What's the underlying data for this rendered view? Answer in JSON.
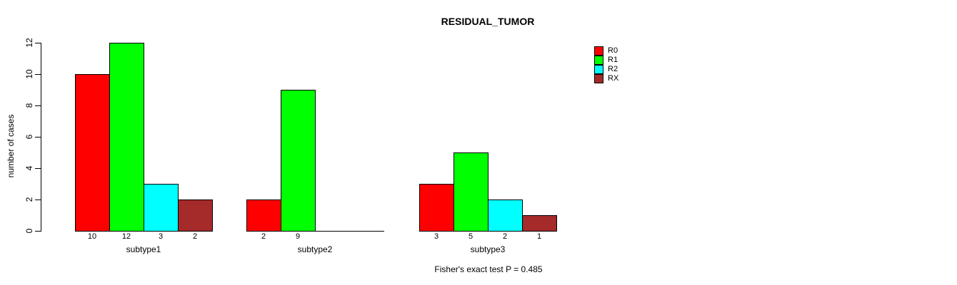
{
  "chart_data": {
    "type": "bar",
    "title": "RESIDUAL_TUMOR",
    "xlabel": "",
    "ylabel": "number of cases",
    "categories": [
      "subtype1",
      "subtype2",
      "subtype3"
    ],
    "series": [
      {
        "name": "R0",
        "color": "#FF0000",
        "values": [
          10,
          2,
          3
        ]
      },
      {
        "name": "R1",
        "color": "#00FF00",
        "values": [
          12,
          9,
          5
        ]
      },
      {
        "name": "R2",
        "color": "#00FFFF",
        "values": [
          3,
          0,
          2
        ]
      },
      {
        "name": "RX",
        "color": "#A52A2A",
        "values": [
          2,
          0,
          1
        ]
      }
    ],
    "yticks": [
      0,
      2,
      4,
      6,
      8,
      10,
      12
    ],
    "ylim": [
      0,
      12
    ],
    "grid": false,
    "legend_position": "top-right",
    "bar_value_labels": true,
    "hide_zero_value_labels": true,
    "annotation": "Fisher's exact test P = 0.485"
  },
  "colors": {
    "foreground": "#000000",
    "background": "#FFFFFF"
  }
}
